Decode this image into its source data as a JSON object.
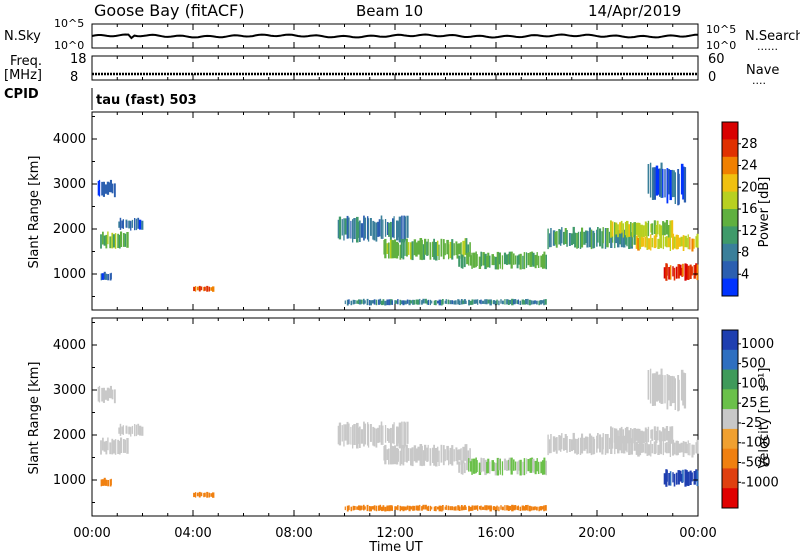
{
  "header": {
    "station": "Goose Bay (fitACF)",
    "beam": "Beam 10",
    "date": "14/Apr/2019"
  },
  "side_labels": {
    "nsky": "N.Sky",
    "freq": "Freq.",
    "freq_unit": "[MHz]",
    "cpid": "CPID",
    "nsearch": "N.Search",
    "nave": "Nave",
    "dots": "......",
    "dots_short": "...."
  },
  "strip_ticks": {
    "noise_left": [
      "10^5",
      "10^0"
    ],
    "noise_right": [
      "10^5",
      "10^0"
    ],
    "freq_left": [
      "18",
      "8"
    ],
    "nave_right": [
      "60",
      "0"
    ]
  },
  "cpid_text": "tau (fast) 503",
  "colors": {
    "velocity_scale": [
      "#1f3fb0",
      "#2e6fc0",
      "#3f9a5a",
      "#6bc04a",
      "#c8c8c8",
      "#f0a030",
      "#f08010",
      "#e04010",
      "#e00000"
    ],
    "power_scale": [
      "#0033ff",
      "#2b5fb0",
      "#3a7f9a",
      "#3f9a6a",
      "#60b040",
      "#b8d020",
      "#f0c010",
      "#f08000",
      "#e03000",
      "#d80000"
    ],
    "line": "#000000"
  },
  "chart_data": [
    {
      "type": "heatmap",
      "name": "power",
      "ylabel": "Slant Range [km]",
      "yticks": [
        "1000",
        "2000",
        "3000",
        "4000"
      ],
      "ylim": [
        200,
        4600
      ],
      "colorbar_label": "Power [dB]",
      "colorbar_ticks": [
        "4",
        "8",
        "12",
        "16",
        "20",
        "24",
        "28"
      ],
      "colorbar_range": [
        0,
        32
      ],
      "regions": [
        {
          "t0": 0.3,
          "t1": 1.4,
          "r0": 1550,
          "r1": 1950,
          "v": 14
        },
        {
          "t0": 1.0,
          "t1": 2.0,
          "r0": 1950,
          "r1": 2250,
          "v": 6
        },
        {
          "t0": 0.2,
          "t1": 0.9,
          "r0": 2700,
          "r1": 3100,
          "v": 4
        },
        {
          "t0": 0.3,
          "t1": 0.8,
          "r0": 850,
          "r1": 1050,
          "v": 6
        },
        {
          "t0": 4.0,
          "t1": 4.8,
          "r0": 600,
          "r1": 750,
          "v": 26
        },
        {
          "t0": 9.7,
          "t1": 12.5,
          "r0": 1700,
          "r1": 2300,
          "v": 8
        },
        {
          "t0": 11.5,
          "t1": 15.0,
          "r0": 1300,
          "r1": 1800,
          "v": 14
        },
        {
          "t0": 14.5,
          "t1": 18.0,
          "r0": 1100,
          "r1": 1500,
          "v": 13
        },
        {
          "t0": 18.0,
          "t1": 21.5,
          "r0": 1550,
          "r1": 2050,
          "v": 11
        },
        {
          "t0": 20.5,
          "t1": 23.0,
          "r0": 1800,
          "r1": 2200,
          "v": 17
        },
        {
          "t0": 21.5,
          "t1": 24.0,
          "r0": 1500,
          "r1": 1900,
          "v": 20
        },
        {
          "t0": 22.6,
          "t1": 24.0,
          "r0": 850,
          "r1": 1250,
          "v": 28
        },
        {
          "t0": 10.0,
          "t1": 18.0,
          "r0": 300,
          "r1": 450,
          "v": 9
        },
        {
          "t0": 22.0,
          "t1": 23.5,
          "r0": 2500,
          "r1": 3500,
          "v": 5
        }
      ]
    },
    {
      "type": "heatmap",
      "name": "velocity",
      "ylabel": "Slant Range [km]",
      "yticks": [
        "1000",
        "2000",
        "3000",
        "4000"
      ],
      "ylim": [
        200,
        4600
      ],
      "colorbar_label": "Velocity [m s⁻¹]",
      "colorbar_ticks": [
        "1000",
        "500",
        "100",
        "25",
        "-25",
        "-100",
        "-500",
        "-1000"
      ],
      "regions": [
        {
          "t0": 0.3,
          "t1": 1.4,
          "r0": 1550,
          "r1": 1950,
          "v": 0
        },
        {
          "t0": 1.0,
          "t1": 2.0,
          "r0": 1950,
          "r1": 2250,
          "v": 0
        },
        {
          "t0": 0.2,
          "t1": 0.9,
          "r0": 2700,
          "r1": 3100,
          "v": 0
        },
        {
          "t0": 0.3,
          "t1": 0.8,
          "r0": 850,
          "r1": 1050,
          "v": -150
        },
        {
          "t0": 4.0,
          "t1": 4.8,
          "r0": 600,
          "r1": 750,
          "v": -200
        },
        {
          "t0": 9.7,
          "t1": 12.5,
          "r0": 1700,
          "r1": 2300,
          "v": 0
        },
        {
          "t0": 11.5,
          "t1": 15.0,
          "r0": 1300,
          "r1": 1800,
          "v": 0
        },
        {
          "t0": 14.5,
          "t1": 18.0,
          "r0": 1100,
          "r1": 1500,
          "v": 10
        },
        {
          "t0": 18.0,
          "t1": 21.5,
          "r0": 1550,
          "r1": 2050,
          "v": 0
        },
        {
          "t0": 20.5,
          "t1": 23.0,
          "r0": 1800,
          "r1": 2200,
          "v": 0
        },
        {
          "t0": 21.5,
          "t1": 24.0,
          "r0": 1500,
          "r1": 1900,
          "v": 0
        },
        {
          "t0": 22.6,
          "t1": 24.0,
          "r0": 850,
          "r1": 1250,
          "v": 600
        },
        {
          "t0": 10.0,
          "t1": 18.0,
          "r0": 300,
          "r1": 450,
          "v": -150
        },
        {
          "t0": 22.0,
          "t1": 23.5,
          "r0": 2500,
          "r1": 3500,
          "v": 0
        }
      ]
    }
  ],
  "x_axis": {
    "ticks": [
      "00:00",
      "04:00",
      "08:00",
      "12:00",
      "16:00",
      "20:00",
      "00:00"
    ],
    "label": "Time UT",
    "range_hours": [
      0,
      24
    ]
  }
}
